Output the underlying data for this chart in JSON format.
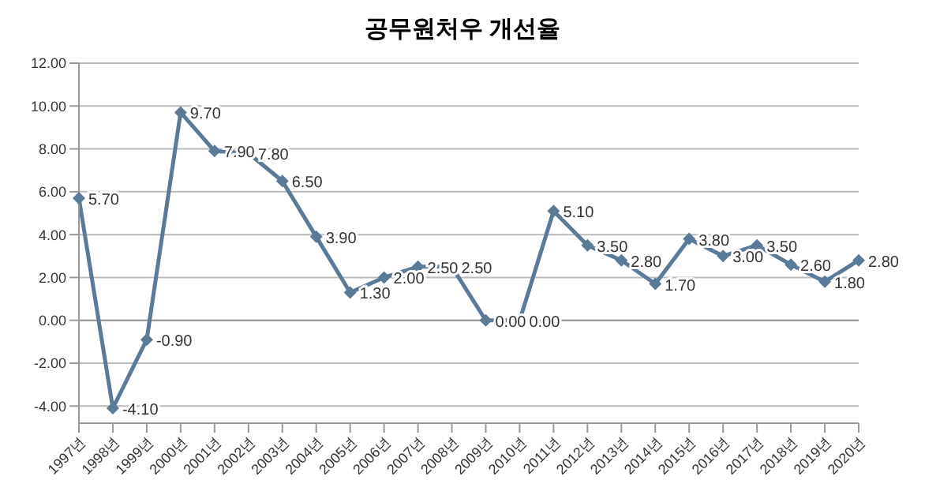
{
  "chart_data": {
    "type": "line",
    "title": "공무원처우 개선율",
    "categories": [
      "1997년",
      "1998년",
      "1999년",
      "2000년",
      "2001년",
      "2002년",
      "2003년",
      "2004년",
      "2005년",
      "2006년",
      "2007년",
      "2008년",
      "2009년",
      "2010년",
      "2011년",
      "2012년",
      "2013년",
      "2014년",
      "2015년",
      "2016년",
      "2017년",
      "2018년",
      "2019년",
      "2020년"
    ],
    "series": [
      {
        "color": "#5a7a98",
        "values": [
          5.7,
          -4.1,
          -0.9,
          9.7,
          7.9,
          7.8,
          6.5,
          3.9,
          1.3,
          2.0,
          2.5,
          2.5,
          0,
          0,
          5.1,
          3.5,
          2.8,
          1.7,
          3.8,
          3.0,
          3.5,
          2.6,
          1.8,
          2.8
        ],
        "value_labels": [
          "5.70",
          "-4.10",
          "-0.90",
          "9.70",
          "7.90",
          "7.80",
          "6.50",
          "3.90",
          "1.30",
          "2.00",
          "2.50",
          "2.50",
          "0.00",
          "0.00",
          "5.10",
          "3.50",
          "2.80",
          "1.70",
          "3.80",
          "3.00",
          "3.50",
          "2.60",
          "1.80",
          "2.80"
        ]
      }
    ],
    "ylim": [
      -4.8,
      12
    ],
    "yticks": [
      {
        "value": -4,
        "label": "-4.00"
      },
      {
        "value": -2,
        "label": "-2.00"
      },
      {
        "value": 0,
        "label": "0.00"
      },
      {
        "value": 2,
        "label": "2.00"
      },
      {
        "value": 4,
        "label": "4.00"
      },
      {
        "value": 6,
        "label": "6.00"
      },
      {
        "value": 8,
        "label": "8.00"
      },
      {
        "value": 10,
        "label": "10.00"
      },
      {
        "value": 12,
        "label": "12.00"
      }
    ],
    "grid": "y",
    "marker": "diamond",
    "line_style": "solid"
  }
}
